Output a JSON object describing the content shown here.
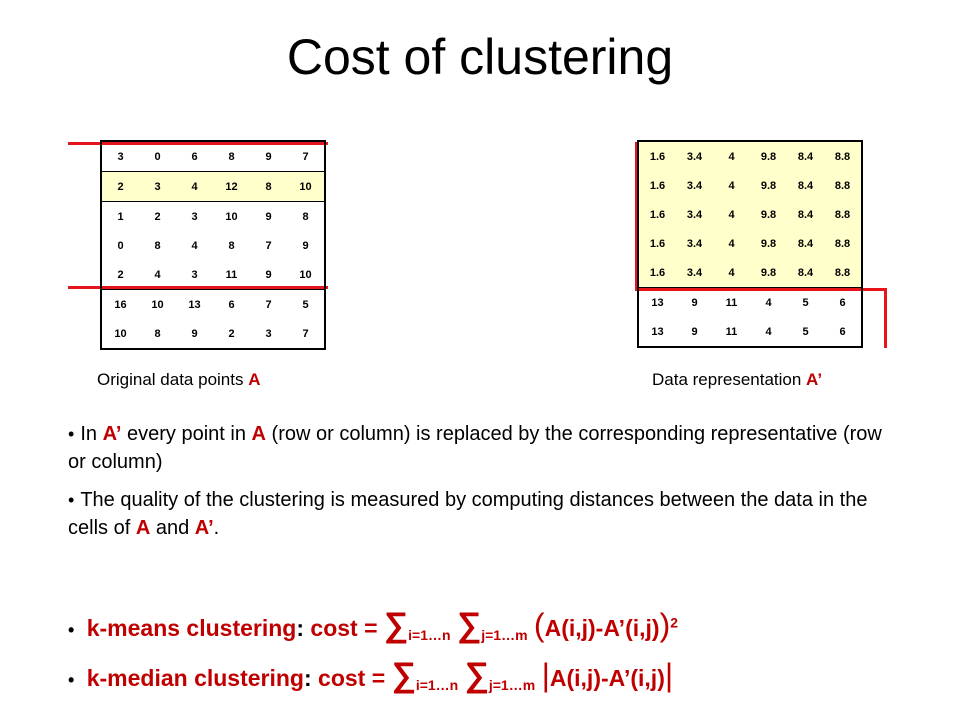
{
  "title": "Cost of clustering",
  "left_matrix": {
    "rows": [
      [
        "3",
        "0",
        "6",
        "8",
        "9",
        "7"
      ],
      [
        "2",
        "3",
        "4",
        "12",
        "8",
        "10"
      ],
      [
        "1",
        "2",
        "3",
        "10",
        "9",
        "8"
      ],
      [
        "0",
        "8",
        "4",
        "8",
        "7",
        "9"
      ],
      [
        "2",
        "4",
        "3",
        "11",
        "9",
        "10"
      ],
      [
        "16",
        "10",
        "13",
        "6",
        "7",
        "5"
      ],
      [
        "10",
        "8",
        "9",
        "2",
        "3",
        "7"
      ]
    ],
    "caption_prefix": "Original data points ",
    "caption_symbol": "A"
  },
  "right_matrix": {
    "rows": [
      [
        "1.6",
        "3.4",
        "4",
        "9.8",
        "8.4",
        "8.8"
      ],
      [
        "1.6",
        "3.4",
        "4",
        "9.8",
        "8.4",
        "8.8"
      ],
      [
        "1.6",
        "3.4",
        "4",
        "9.8",
        "8.4",
        "8.8"
      ],
      [
        "1.6",
        "3.4",
        "4",
        "9.8",
        "8.4",
        "8.8"
      ],
      [
        "1.6",
        "3.4",
        "4",
        "9.8",
        "8.4",
        "8.8"
      ],
      [
        "13",
        "9",
        "11",
        "4",
        "5",
        "6"
      ],
      [
        "13",
        "9",
        "11",
        "4",
        "5",
        "6"
      ]
    ],
    "caption_prefix": "Data representation ",
    "caption_symbol": "A’"
  },
  "bullets": {
    "b1_part1": "In ",
    "b1_sym1": "A’",
    "b1_part2": " every point in ",
    "b1_sym2": "A",
    "b1_part3": " (row or column) is replaced by the corresponding representative (row or column)",
    "b2_part1": "The quality of the clustering is measured by computing distances between the data in the cells of ",
    "b2_sym1": "A",
    "b2_part2": " and ",
    "b2_sym2": "A’",
    "b2_part3": "."
  },
  "formulas": {
    "kmeans_label": "k-means clustering",
    "kmedian_label": "k-median clustering",
    "cost_label": "cost = ",
    "sigma": "∑",
    "sub_i": "i=1…n",
    "sub_j": "j=1…m",
    "open_paren": "(",
    "close_paren": ")",
    "expr": "A(i,j)-A’(i,j)",
    "square": "2",
    "bar": "|"
  }
}
